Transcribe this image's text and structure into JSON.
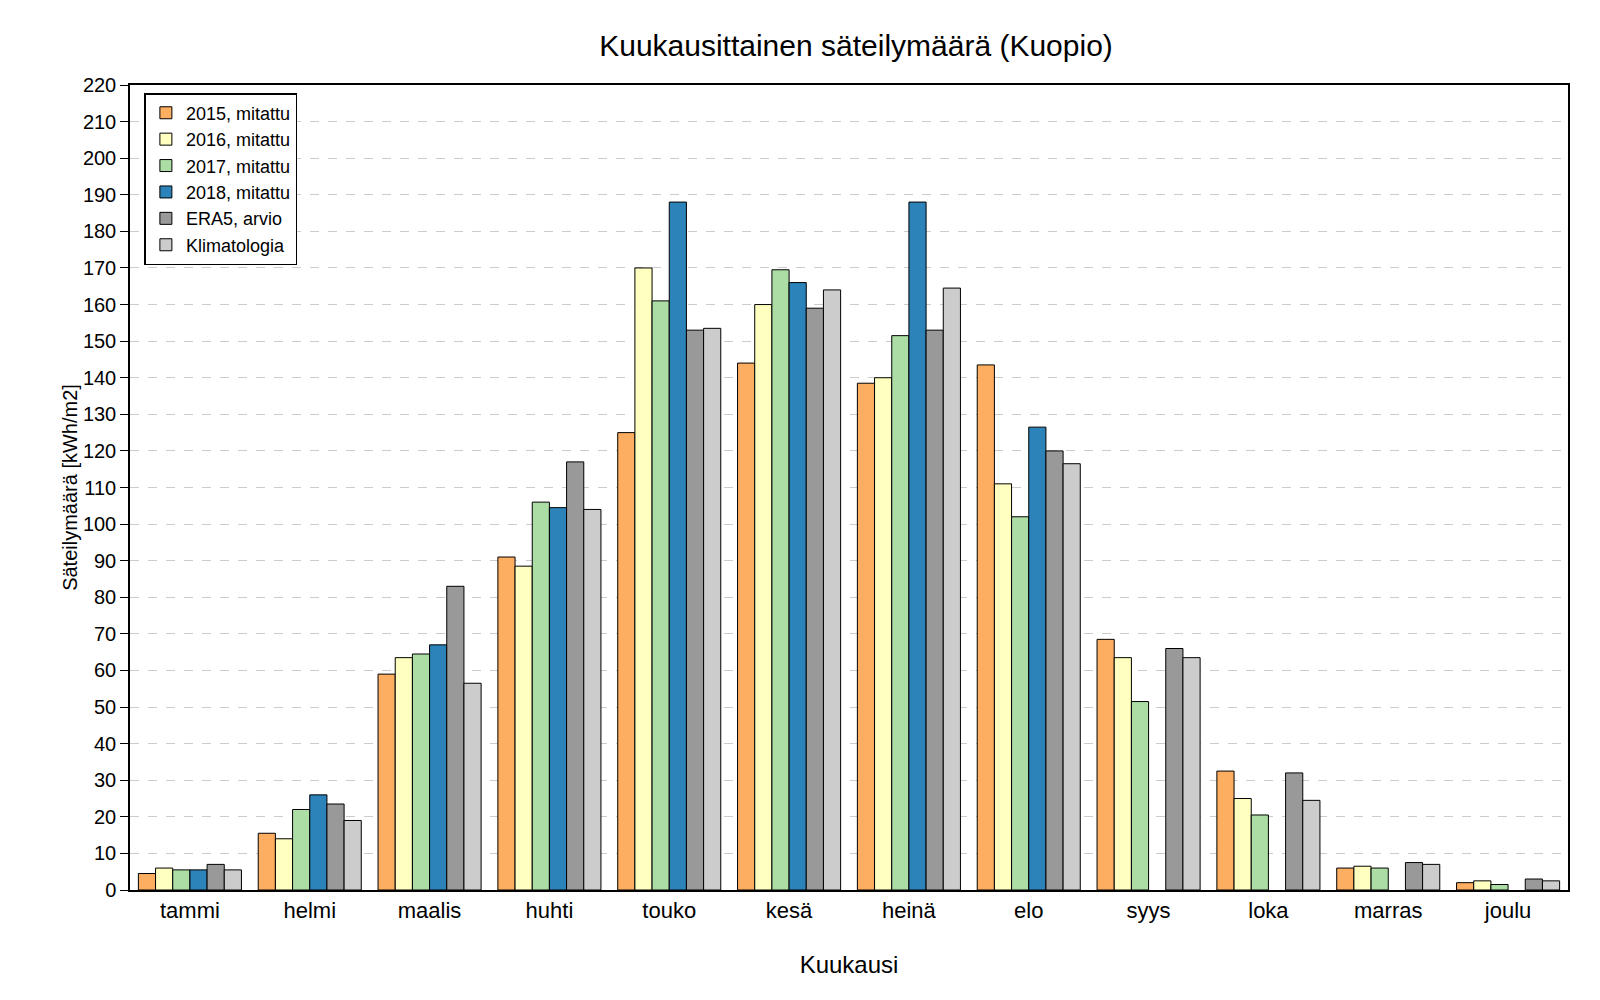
{
  "chart_data": {
    "type": "bar",
    "title": "Kuukausittainen säteilymäärä (Kuopio)",
    "x_label": "Kuukausi",
    "y_label": "Säteilymäärä [kWh/m2]",
    "categories": [
      "tammi",
      "helmi",
      "maalis",
      "huhti",
      "touko",
      "kesä",
      "heinä",
      "elo",
      "syys",
      "loka",
      "marras",
      "joulu"
    ],
    "series": [
      {
        "name": "2015, mitattu",
        "color": "#fdae61",
        "values": [
          4.5,
          15.5,
          59,
          91,
          125,
          144,
          138.5,
          143.5,
          68.5,
          32.5,
          6,
          2
        ]
      },
      {
        "name": "2016, mitattu",
        "color": "#ffffbf",
        "values": [
          6,
          14,
          63.5,
          88.5,
          170,
          160,
          140,
          111,
          63.5,
          25,
          6.5,
          2.5
        ]
      },
      {
        "name": "2017, mitattu",
        "color": "#abdda4",
        "values": [
          5.5,
          22,
          64.5,
          106,
          161,
          169.5,
          151.5,
          102,
          51.5,
          20.5,
          6,
          1.5
        ]
      },
      {
        "name": "2018, mitattu",
        "color": "#2b83ba",
        "values": [
          5.5,
          26,
          67,
          104.5,
          188,
          166,
          188,
          126.5,
          null,
          null,
          null,
          null
        ]
      },
      {
        "name": "ERA5, arvio",
        "color": "#999999",
        "values": [
          7,
          23.5,
          83,
          117,
          153,
          159,
          153,
          120,
          66,
          32,
          7.5,
          3
        ]
      },
      {
        "name": "Klimatologia",
        "color": "#cccccc",
        "values": [
          5.5,
          19,
          56.5,
          104,
          153.5,
          164,
          164.5,
          116.5,
          63.5,
          24.5,
          7,
          2.5
        ]
      }
    ],
    "ylim": [
      0,
      220
    ],
    "yticks": [
      0,
      10,
      20,
      30,
      40,
      50,
      60,
      70,
      80,
      90,
      100,
      110,
      120,
      130,
      140,
      150,
      160,
      170,
      180,
      190,
      200,
      210,
      220
    ],
    "grid": true,
    "legend": "top-left"
  }
}
